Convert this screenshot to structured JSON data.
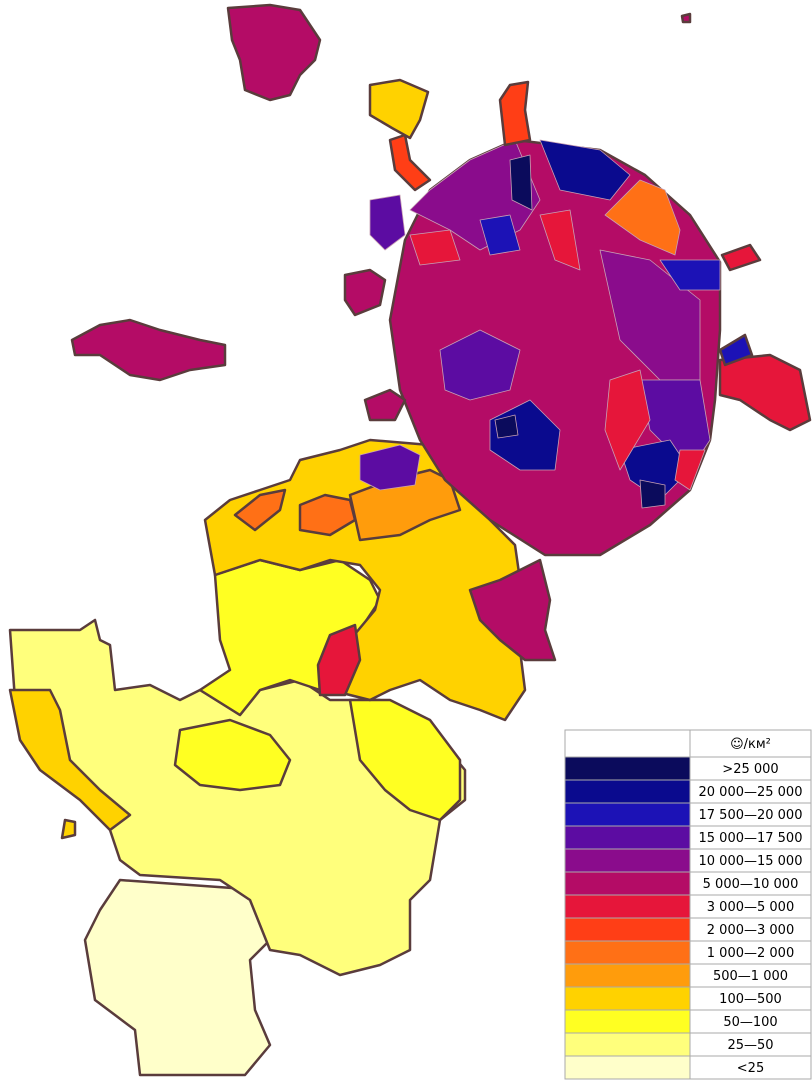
{
  "legend": {
    "header": "☺/км²",
    "items": [
      {
        "label": ">25 000",
        "color": "#0b0b5c"
      },
      {
        "label": "20 000—25 000",
        "color": "#0a0a8e"
      },
      {
        "label": "17 500—20 000",
        "color": "#1c12b6"
      },
      {
        "label": "15 000—17 500",
        "color": "#5c0ca2"
      },
      {
        "label": "10 000—15 000",
        "color": "#8a0c8c"
      },
      {
        "label": "5 000—10 000",
        "color": "#b40c66"
      },
      {
        "label": "3 000—5 000",
        "color": "#e6163a"
      },
      {
        "label": "2 000—3 000",
        "color": "#ff3e16"
      },
      {
        "label": "1 000—2 000",
        "color": "#ff7016"
      },
      {
        "label": "500—1 000",
        "color": "#ff9c0c"
      },
      {
        "label": "100—500",
        "color": "#ffd200"
      },
      {
        "label": "50—100",
        "color": "#ffff22"
      },
      {
        "label": "25—50",
        "color": "#ffff7c"
      },
      {
        "label": "<25",
        "color": "#ffffca"
      }
    ]
  }
}
